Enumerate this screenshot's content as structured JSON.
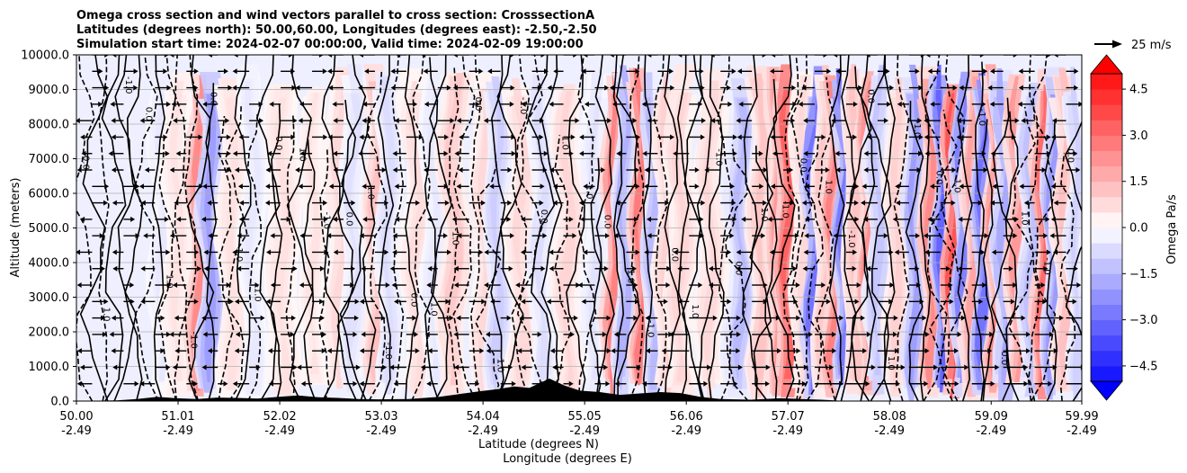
{
  "chart_data": {
    "type": "heatmap",
    "title_lines": [
      "Omega cross section and wind vectors parallel to cross section: CrosssectionA",
      "Latitudes (degrees north): 50.00,60.00, Longitudes (degrees east): -2.50,-2.50",
      "Simulation start time: 2024-02-07 00:00:00, Valid time: 2024-02-09 19:00:00"
    ],
    "ylabel": "Altitude (meters)",
    "xlabel_lat": "Latitude (degrees N)",
    "xlabel_lon": "Longitude (degrees E)",
    "y_range": [
      0,
      10000
    ],
    "x_range": [
      50.0,
      59.99
    ],
    "y_ticks": [
      "0.0",
      "1000.0",
      "2000.0",
      "3000.0",
      "4000.0",
      "5000.0",
      "6000.0",
      "7000.0",
      "8000.0",
      "9000.0",
      "10000.0"
    ],
    "x_ticks": [
      {
        "lat": "50.00",
        "lon": "-2.49"
      },
      {
        "lat": "51.01",
        "lon": "-2.49"
      },
      {
        "lat": "52.02",
        "lon": "-2.49"
      },
      {
        "lat": "53.03",
        "lon": "-2.49"
      },
      {
        "lat": "54.04",
        "lon": "-2.49"
      },
      {
        "lat": "55.05",
        "lon": "-2.49"
      },
      {
        "lat": "56.06",
        "lon": "-2.49"
      },
      {
        "lat": "57.07",
        "lon": "-2.49"
      },
      {
        "lat": "58.08",
        "lon": "-2.49"
      },
      {
        "lat": "59.09",
        "lon": "-2.49"
      },
      {
        "lat": "59.99",
        "lon": "-2.49"
      }
    ],
    "colorbar": {
      "label": "Omega Pa/s",
      "min": -5.0,
      "max": 5.0,
      "ticks": [
        "4.5",
        "3.0",
        "1.5",
        "0.0",
        "−1.5",
        "−3.0",
        "−4.5"
      ],
      "extend": "both"
    },
    "quiver_key": {
      "label": "25 m/s"
    },
    "contour_labels": [
      "0.0",
      "1.0",
      "-1.0"
    ],
    "bands": [
      {
        "lat": 50.85,
        "w": 0.05,
        "v": -0.6
      },
      {
        "lat": 51.0,
        "w": 0.06,
        "v": 0.7
      },
      {
        "lat": 51.22,
        "w": 0.05,
        "v": 3.0
      },
      {
        "lat": 51.33,
        "w": 0.05,
        "v": -2.5
      },
      {
        "lat": 51.55,
        "w": 0.06,
        "v": 0.8
      },
      {
        "lat": 51.75,
        "w": 0.05,
        "v": -0.6
      },
      {
        "lat": 52.05,
        "w": 0.07,
        "v": 0.8
      },
      {
        "lat": 52.35,
        "w": 0.05,
        "v": 0.7
      },
      {
        "lat": 52.62,
        "w": 0.06,
        "v": 1.0
      },
      {
        "lat": 52.75,
        "w": 0.05,
        "v": -0.8
      },
      {
        "lat": 52.98,
        "w": 0.05,
        "v": 1.6
      },
      {
        "lat": 53.1,
        "w": 0.05,
        "v": -0.9
      },
      {
        "lat": 53.38,
        "w": 0.06,
        "v": 0.9
      },
      {
        "lat": 53.55,
        "w": 0.05,
        "v": -0.6
      },
      {
        "lat": 53.75,
        "w": 0.06,
        "v": 1.4
      },
      {
        "lat": 54.05,
        "w": 0.05,
        "v": 1.0
      },
      {
        "lat": 54.18,
        "w": 0.05,
        "v": -1.3
      },
      {
        "lat": 54.42,
        "w": 0.06,
        "v": 1.0
      },
      {
        "lat": 54.62,
        "w": 0.05,
        "v": -0.9
      },
      {
        "lat": 54.88,
        "w": 0.06,
        "v": 1.1
      },
      {
        "lat": 55.15,
        "w": 0.05,
        "v": -0.7
      },
      {
        "lat": 55.33,
        "w": 0.04,
        "v": 3.2
      },
      {
        "lat": 55.44,
        "w": 0.04,
        "v": -2.0
      },
      {
        "lat": 55.6,
        "w": 0.04,
        "v": 3.4
      },
      {
        "lat": 55.72,
        "w": 0.04,
        "v": -1.8
      },
      {
        "lat": 55.86,
        "w": 0.05,
        "v": 1.2
      },
      {
        "lat": 56.0,
        "w": 0.06,
        "v": 1.1
      },
      {
        "lat": 56.3,
        "w": 0.06,
        "v": 1.0
      },
      {
        "lat": 56.6,
        "w": 0.05,
        "v": -1.8
      },
      {
        "lat": 56.8,
        "w": 0.05,
        "v": 1.5
      },
      {
        "lat": 56.96,
        "w": 0.04,
        "v": 2.6
      },
      {
        "lat": 57.06,
        "w": 0.05,
        "v": 4.0
      },
      {
        "lat": 57.22,
        "w": 0.05,
        "v": 1.0
      },
      {
        "lat": 57.32,
        "w": 0.04,
        "v": -3.6
      },
      {
        "lat": 57.42,
        "w": 0.04,
        "v": 1.4
      },
      {
        "lat": 57.52,
        "w": 0.04,
        "v": 3.2
      },
      {
        "lat": 57.62,
        "w": 0.04,
        "v": -3.4
      },
      {
        "lat": 57.74,
        "w": 0.05,
        "v": 1.5
      },
      {
        "lat": 57.86,
        "w": 0.04,
        "v": 2.8
      },
      {
        "lat": 57.96,
        "w": 0.05,
        "v": -1.5
      },
      {
        "lat": 58.15,
        "w": 0.05,
        "v": 1.2
      },
      {
        "lat": 58.32,
        "w": 0.04,
        "v": -2.5
      },
      {
        "lat": 58.48,
        "w": 0.04,
        "v": 3.0
      },
      {
        "lat": 58.6,
        "w": 0.04,
        "v": -4.0
      },
      {
        "lat": 58.7,
        "w": 0.04,
        "v": 4.4
      },
      {
        "lat": 58.8,
        "w": 0.04,
        "v": -3.2
      },
      {
        "lat": 58.9,
        "w": 0.04,
        "v": 2.4
      },
      {
        "lat": 59.0,
        "w": 0.04,
        "v": -3.6
      },
      {
        "lat": 59.12,
        "w": 0.04,
        "v": 3.0
      },
      {
        "lat": 59.22,
        "w": 0.05,
        "v": -2.2
      },
      {
        "lat": 59.35,
        "w": 0.05,
        "v": 2.6
      },
      {
        "lat": 59.48,
        "w": 0.05,
        "v": -1.6
      },
      {
        "lat": 59.6,
        "w": 0.04,
        "v": 3.8
      },
      {
        "lat": 59.7,
        "w": 0.04,
        "v": -2.6
      },
      {
        "lat": 59.82,
        "w": 0.05,
        "v": 1.6
      },
      {
        "lat": 59.93,
        "w": 0.04,
        "v": -1.2
      }
    ],
    "terrain_m": [
      [
        50.0,
        0
      ],
      [
        50.4,
        20
      ],
      [
        50.6,
        60
      ],
      [
        50.8,
        120
      ],
      [
        51.0,
        80
      ],
      [
        51.2,
        60
      ],
      [
        51.4,
        100
      ],
      [
        51.6,
        90
      ],
      [
        51.8,
        70
      ],
      [
        52.0,
        120
      ],
      [
        52.2,
        160
      ],
      [
        52.4,
        110
      ],
      [
        52.6,
        90
      ],
      [
        52.8,
        60
      ],
      [
        53.0,
        50
      ],
      [
        53.3,
        60
      ],
      [
        53.6,
        120
      ],
      [
        53.8,
        200
      ],
      [
        54.0,
        280
      ],
      [
        54.2,
        350
      ],
      [
        54.35,
        420
      ],
      [
        54.5,
        380
      ],
      [
        54.7,
        650
      ],
      [
        54.85,
        450
      ],
      [
        55.0,
        300
      ],
      [
        55.2,
        260
      ],
      [
        55.4,
        180
      ],
      [
        55.6,
        220
      ],
      [
        55.8,
        260
      ],
      [
        56.0,
        230
      ],
      [
        56.2,
        120
      ],
      [
        56.4,
        60
      ],
      [
        56.7,
        40
      ],
      [
        57.0,
        80
      ],
      [
        57.2,
        60
      ],
      [
        57.4,
        40
      ],
      [
        57.6,
        10
      ],
      [
        58.0,
        0
      ],
      [
        59.99,
        0
      ]
    ]
  }
}
